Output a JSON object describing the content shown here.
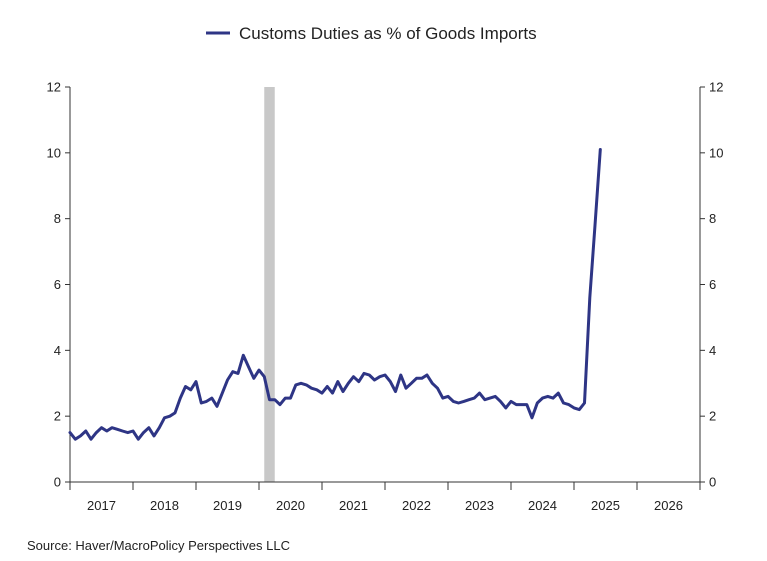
{
  "chart_data": {
    "type": "line",
    "title": "",
    "legend": {
      "position": "top-center"
    },
    "series": [
      {
        "name": "Customs Duties as % of Goods Imports",
        "color": "#2e3585",
        "x": [
          "2017-01",
          "2017-02",
          "2017-03",
          "2017-04",
          "2017-05",
          "2017-06",
          "2017-07",
          "2017-08",
          "2017-09",
          "2017-10",
          "2017-11",
          "2017-12",
          "2018-01",
          "2018-02",
          "2018-03",
          "2018-04",
          "2018-05",
          "2018-06",
          "2018-07",
          "2018-08",
          "2018-09",
          "2018-10",
          "2018-11",
          "2018-12",
          "2019-01",
          "2019-02",
          "2019-03",
          "2019-04",
          "2019-05",
          "2019-06",
          "2019-07",
          "2019-08",
          "2019-09",
          "2019-10",
          "2019-11",
          "2019-12",
          "2020-01",
          "2020-02",
          "2020-03",
          "2020-04",
          "2020-05",
          "2020-06",
          "2020-07",
          "2020-08",
          "2020-09",
          "2020-10",
          "2020-11",
          "2020-12",
          "2021-01",
          "2021-02",
          "2021-03",
          "2021-04",
          "2021-05",
          "2021-06",
          "2021-07",
          "2021-08",
          "2021-09",
          "2021-10",
          "2021-11",
          "2021-12",
          "2022-01",
          "2022-02",
          "2022-03",
          "2022-04",
          "2022-05",
          "2022-06",
          "2022-07",
          "2022-08",
          "2022-09",
          "2022-10",
          "2022-11",
          "2022-12",
          "2023-01",
          "2023-02",
          "2023-03",
          "2023-04",
          "2023-05",
          "2023-06",
          "2023-07",
          "2023-08",
          "2023-09",
          "2023-10",
          "2023-11",
          "2023-12",
          "2024-01",
          "2024-02",
          "2024-03",
          "2024-04",
          "2024-05",
          "2024-06",
          "2024-07",
          "2024-08",
          "2024-09",
          "2024-10",
          "2024-11",
          "2024-12",
          "2025-01",
          "2025-02",
          "2025-03",
          "2025-04",
          "2025-05",
          "2025-06"
        ],
        "values": [
          1.5,
          1.3,
          1.4,
          1.55,
          1.3,
          1.5,
          1.65,
          1.55,
          1.65,
          1.6,
          1.55,
          1.5,
          1.55,
          1.3,
          1.5,
          1.65,
          1.4,
          1.65,
          1.95,
          2.0,
          2.1,
          2.55,
          2.9,
          2.8,
          3.05,
          2.4,
          2.45,
          2.55,
          2.3,
          2.7,
          3.1,
          3.35,
          3.3,
          3.85,
          3.5,
          3.15,
          3.4,
          3.2,
          2.5,
          2.5,
          2.35,
          2.55,
          2.55,
          2.95,
          3.0,
          2.95,
          2.85,
          2.8,
          2.7,
          2.9,
          2.7,
          3.05,
          2.75,
          3.0,
          3.2,
          3.05,
          3.3,
          3.25,
          3.1,
          3.2,
          3.25,
          3.05,
          2.75,
          3.25,
          2.85,
          3.0,
          3.15,
          3.15,
          3.25,
          3.0,
          2.85,
          2.55,
          2.6,
          2.45,
          2.4,
          2.45,
          2.5,
          2.55,
          2.7,
          2.5,
          2.55,
          2.6,
          2.45,
          2.25,
          2.45,
          2.35,
          2.35,
          2.35,
          1.95,
          2.4,
          2.55,
          2.6,
          2.55,
          2.7,
          2.4,
          2.35,
          2.25,
          2.2,
          2.4,
          5.6,
          7.8,
          10.1
        ]
      }
    ],
    "recession_bands": [
      {
        "start": "2020-02",
        "end": "2020-04"
      }
    ],
    "x_ticks": [
      "2017",
      "2018",
      "2019",
      "2020",
      "2021",
      "2022",
      "2023",
      "2024",
      "2025",
      "2026"
    ],
    "y_ticks": [
      0,
      2,
      4,
      6,
      8,
      10,
      12
    ],
    "ylim": [
      0,
      12
    ],
    "xlim": [
      "2017-01",
      "2026-12"
    ],
    "xlabel": "",
    "ylabel": "",
    "grid": false,
    "source": "Source:  Haver/MacroPolicy Perspectives LLC"
  }
}
